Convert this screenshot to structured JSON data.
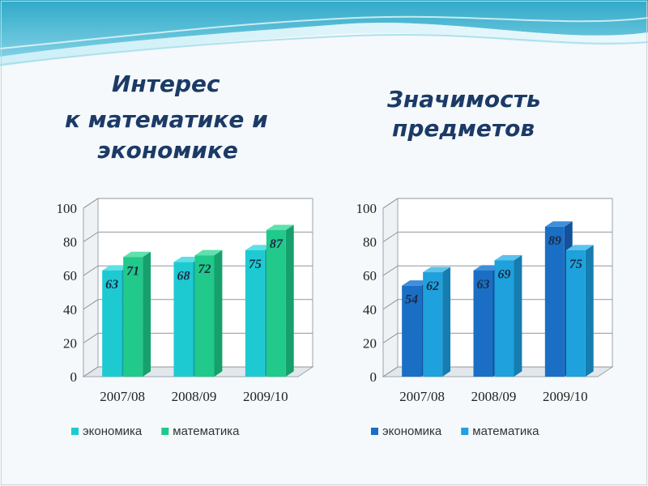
{
  "slide": {
    "left_title_lines": [
      "Интерес",
      "к математике и",
      "экономике"
    ],
    "right_title_lines": [
      "Значимость",
      "предметов"
    ]
  },
  "chart_data": [
    {
      "type": "bar",
      "categories": [
        "2007/08",
        "2008/09",
        "2009/10"
      ],
      "series": [
        {
          "name": "экономика",
          "values": [
            63,
            68,
            75
          ],
          "color": "#1ecad2",
          "side_color": "#14a2ab",
          "top_color": "#5ee0e6"
        },
        {
          "name": "математика",
          "values": [
            71,
            72,
            87
          ],
          "color": "#21c98a",
          "side_color": "#16a06c",
          "top_color": "#5fe0ad"
        }
      ],
      "yticks": [
        0,
        20,
        40,
        60,
        80,
        100
      ],
      "ylim": [
        0,
        100
      ],
      "legend": "bottom",
      "grid": true
    },
    {
      "type": "bar",
      "categories": [
        "2007/08",
        "2008/09",
        "2009/10"
      ],
      "series": [
        {
          "name": "экономика",
          "values": [
            54,
            63,
            89
          ],
          "color": "#1a6fc4",
          "side_color": "#12529a",
          "top_color": "#3f8fdc"
        },
        {
          "name": "математика",
          "values": [
            62,
            69,
            75
          ],
          "color": "#1ea1dc",
          "side_color": "#157db0",
          "top_color": "#5cc2ec"
        }
      ],
      "yticks": [
        0,
        20,
        40,
        60,
        80,
        100
      ],
      "ylim": [
        0,
        100
      ],
      "legend": "bottom",
      "grid": true
    }
  ]
}
